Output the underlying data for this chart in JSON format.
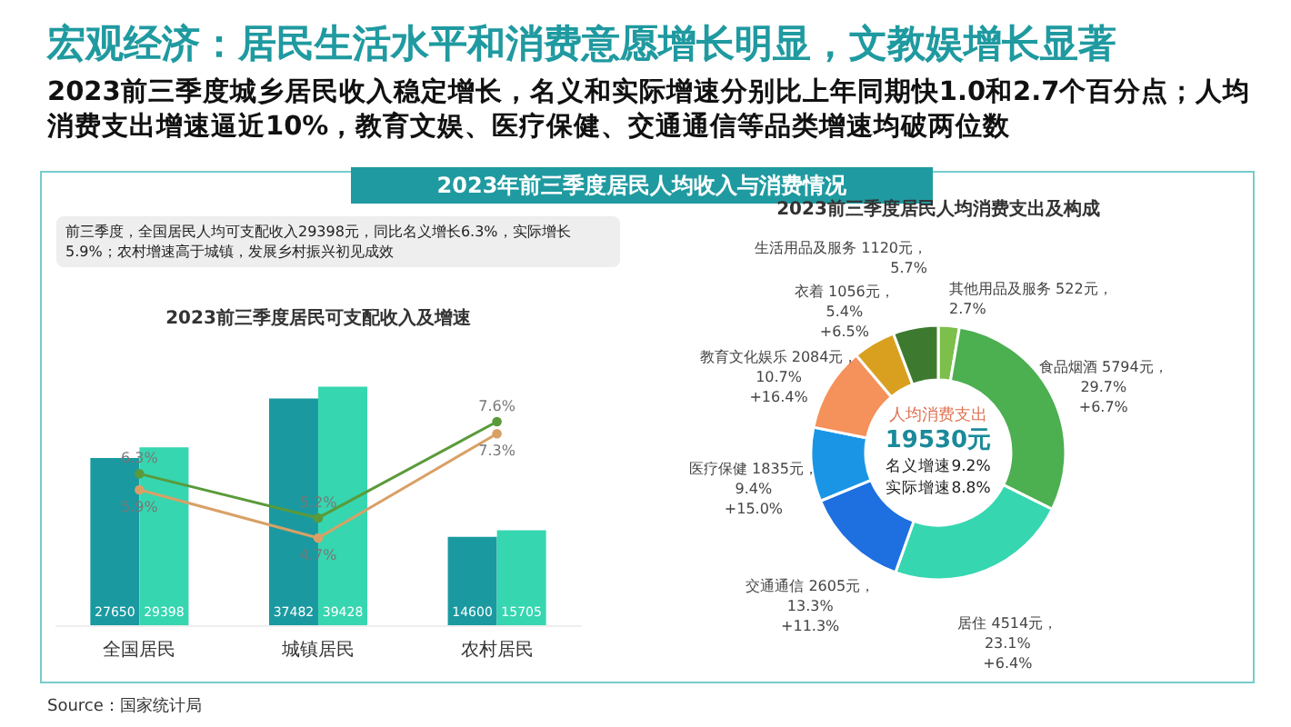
{
  "chart_data": [
    {
      "type": "bar",
      "title": "2023前三季度居民可支配收入及增速",
      "annotations": [
        "宏观经济：居民生活水平和消费意愿增长明显，文教娱增长显著",
        "2023前三季度城乡居民收入稳定增长，名义和实际增速分别比上年同期快1.0和2.7个百分点；人均消费支出增速逼近10%，教育文娱、医疗保健、交通通信等品类增速均破两位数",
        "2023年前三季度居民人均收入与消费情况",
        "前三季度，全国居民人均可支配收入29398元，同比名义增长6.3%，实际增长5.9%；农村增速高于城镇，发展乡村振兴初见成效",
        "Source：国家统计局"
      ],
      "categories": [
        "全国居民",
        "城镇居民",
        "农村居民"
      ],
      "series": [
        {
          "color": "#1a9aa0",
          "values": [
            27650,
            37482,
            14600
          ]
        },
        {
          "color": "#36d6b0",
          "values": [
            29398,
            39428,
            15705
          ]
        },
        {
          "type": "line",
          "axis": "y2",
          "color": "#5a9a3a",
          "values": [
            6.3,
            5.2,
            7.6
          ],
          "value_labels": [
            "6.3%",
            "5.2%",
            "7.6%"
          ]
        },
        {
          "type": "line",
          "axis": "y2",
          "color": "#d9a066",
          "values": [
            5.9,
            4.7,
            7.3
          ],
          "value_labels": [
            "5.9%",
            "4.7%",
            "7.3%"
          ]
        }
      ],
      "data_labels": true,
      "marker": "circle",
      "tick_labels": "x"
    },
    {
      "type": "donut",
      "title": "2023前三季度居民人均消费支出及构成",
      "annotations": [
        "人均消费支出",
        "19530元",
        "名义增速9.2%",
        "实际增速8.8%"
      ],
      "categories": [
        "其他用品及服务",
        "食品烟酒",
        "居住",
        "交通通信",
        "医疗保健",
        "教育文化娱乐",
        "衣着",
        "生活用品及服务"
      ],
      "values": [
        522,
        5794,
        4514,
        2605,
        1835,
        2084,
        1056,
        1120
      ],
      "value_labels": [
        "522元，\n2.7%",
        "5794元，\n29.7%\n+6.7%",
        "4514元，\n23.1%\n+6.4%",
        "2605元，\n13.3%\n+11.3%",
        "1835元，\n9.4%\n+15.0%",
        "2084元，\n10.7%\n+16.4%",
        "1056元，\n5.4%\n+6.5%",
        "1120元，\n5.7%"
      ],
      "colors": [
        "#7cbf4a",
        "#4caf50",
        "#36d6b0",
        "#1e6fe0",
        "#1a95e6",
        "#f5915a",
        "#d9a020",
        "#3d7a2f"
      ]
    }
  ]
}
